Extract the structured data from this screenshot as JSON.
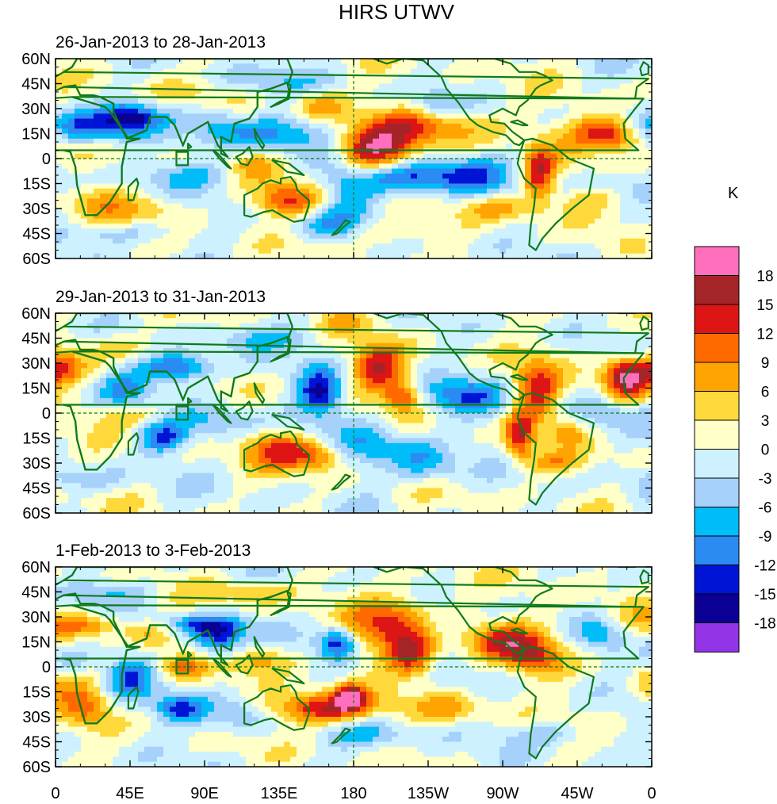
{
  "title": "HIRS UTWV",
  "units": "K",
  "panels": [
    {
      "label": "26-Jan-2013 to 28-Jan-2013"
    },
    {
      "label": "29-Jan-2013 to 31-Jan-2013"
    },
    {
      "label": "1-Feb-2013 to 3-Feb-2013"
    }
  ],
  "lat_ticks": [
    "60N",
    "45N",
    "30N",
    "15N",
    "0",
    "15S",
    "30S",
    "45S",
    "60S"
  ],
  "lon_ticks": [
    "0",
    "45E",
    "90E",
    "135E",
    "180",
    "135W",
    "90W",
    "45W",
    "0"
  ],
  "colorbar": {
    "labels": [
      "18",
      "15",
      "12",
      "9",
      "6",
      "3",
      "0",
      "-3",
      "-6",
      "-9",
      "-12",
      "-15",
      "-18"
    ],
    "colors": [
      "#ff6fbd",
      "#a52428",
      "#dd1515",
      "#ff6a00",
      "#ffa400",
      "#ffd93b",
      "#ffffc8",
      "#cdf1ff",
      "#a6d1fa",
      "#00bdf9",
      "#2a8bf2",
      "#0014d6",
      "#0a0093",
      "#9334e6"
    ]
  },
  "map_colors": {
    "coast": "#0f7a1c",
    "grid": "#0f7a1c"
  }
}
